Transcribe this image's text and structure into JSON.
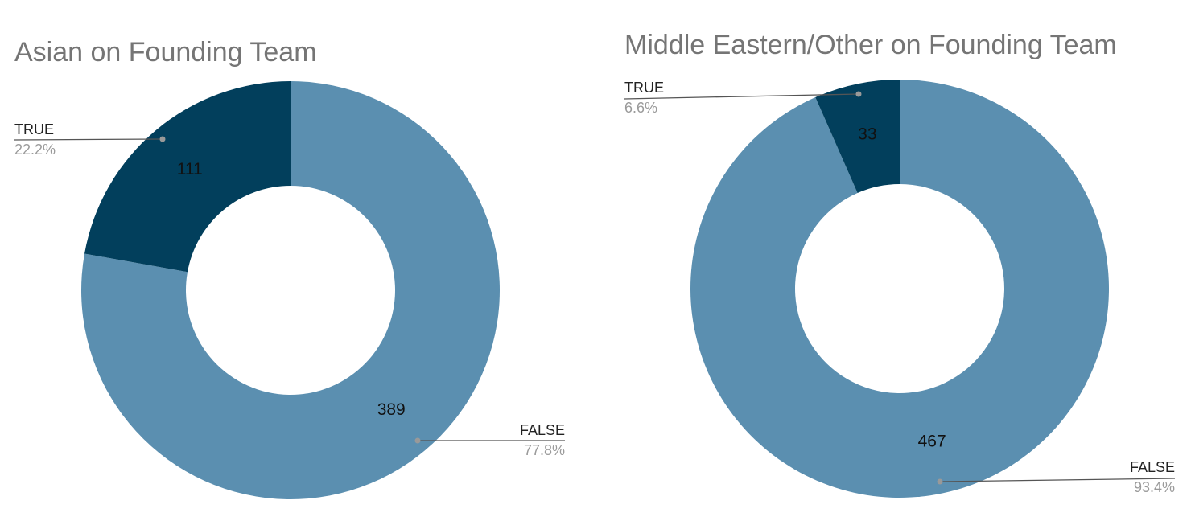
{
  "chart_data": [
    {
      "type": "pie",
      "donut": true,
      "title": "Asian on Founding Team",
      "slices": [
        {
          "label": "FALSE",
          "value": 389,
          "percent_label": "77.8%",
          "color": "#5b8fb0"
        },
        {
          "label": "TRUE",
          "value": 111,
          "percent_label": "22.2%",
          "color": "#023f5c"
        }
      ]
    },
    {
      "type": "pie",
      "donut": true,
      "title": "Middle Eastern/Other on Founding Team",
      "slices": [
        {
          "label": "FALSE",
          "value": 467,
          "percent_label": "93.4%",
          "color": "#5b8fb0"
        },
        {
          "label": "TRUE",
          "value": 33,
          "percent_label": "6.6%",
          "color": "#023f5c"
        }
      ]
    }
  ]
}
